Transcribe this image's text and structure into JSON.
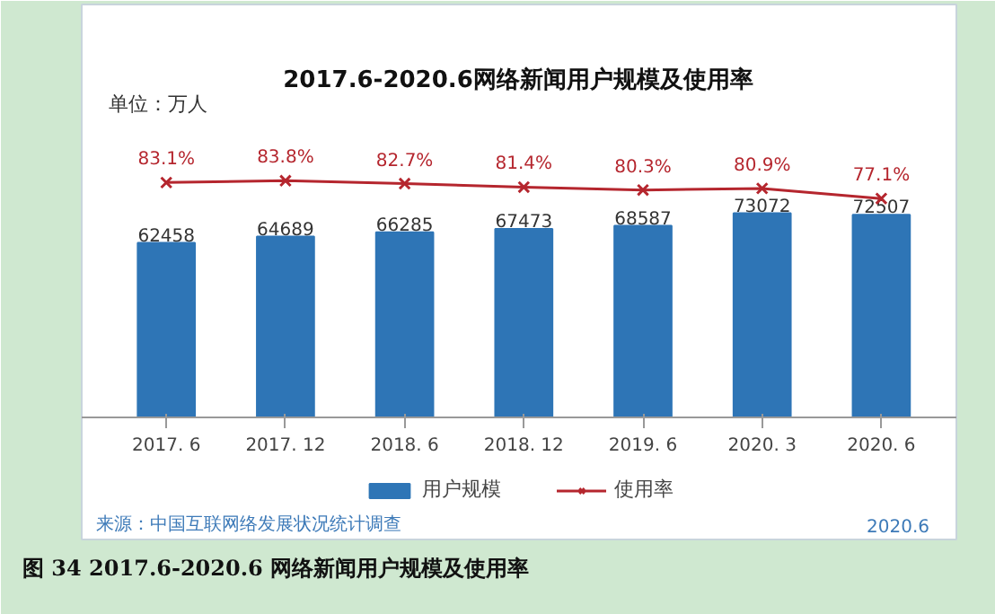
{
  "chart_data": {
    "type": "bar",
    "title": "2017.6-2020.6网络新闻用户规模及使用率",
    "categories": [
      "2017. 6",
      "2017. 12",
      "2018. 6",
      "2018. 12",
      "2019. 6",
      "2020. 3",
      "2020. 6"
    ],
    "series": [
      {
        "name": "用户规模",
        "color": "#2e75b6",
        "values": [
          62458,
          64689,
          66285,
          67473,
          68587,
          73072,
          72507
        ],
        "value_labels": [
          "62458",
          "64689",
          "66285",
          "67473",
          "68587",
          "73072",
          "72507"
        ]
      },
      {
        "name": "使用率",
        "type": "line",
        "axis": "y2",
        "color": "#b5262e",
        "marker": "cross",
        "values": [
          83.1,
          83.8,
          82.7,
          81.4,
          80.3,
          80.9,
          77.1
        ],
        "value_labels": [
          "83.1%",
          "83.8%",
          "82.7%",
          "81.4%",
          "80.3%",
          "80.9%",
          "77.1%"
        ]
      }
    ],
    "ylim": [
      -44000,
      148000
    ],
    "y2lim": [
      -51,
      150
    ],
    "tick_labels": "x",
    "grid": false,
    "legend": "bottom",
    "annotations": [
      "单位：万人",
      "来源：中国互联网络发展状况统计调查",
      "2020.6",
      "图 34   2017.6-2020.6 网络新闻用户规模及使用率"
    ]
  }
}
